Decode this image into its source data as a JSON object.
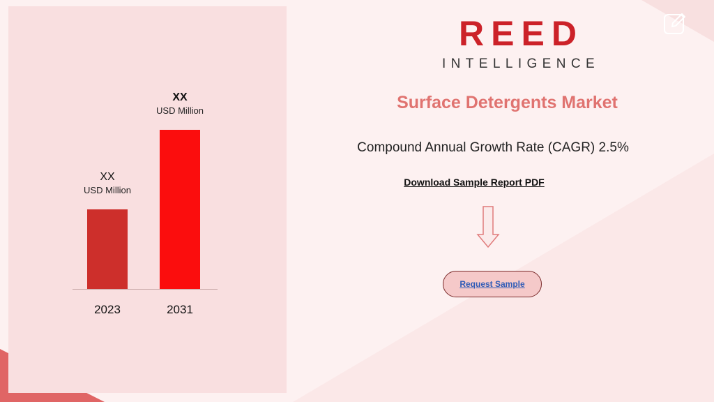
{
  "logo": {
    "top": "REED",
    "bottom": "INTELLIGENCE"
  },
  "title": "Surface Detergents Market",
  "cagr_text": "Compound Annual Growth Rate (CAGR) 2.5%",
  "download_link": "Download Sample Report PDF",
  "request_button": "Request Sample",
  "icons": {
    "arrow": "down-arrow-icon",
    "edit": "edit-icon"
  },
  "colors": {
    "bar_2023": "#cd2f2b",
    "bar_2031": "#fb0d0d",
    "title": "#e07370",
    "logo": "#cc2229"
  },
  "chart_data": {
    "type": "bar",
    "categories": [
      "2023",
      "2031"
    ],
    "values": [
      1.0,
      2.0
    ],
    "value_labels": [
      {
        "value": "XX",
        "unit": "USD Million"
      },
      {
        "value": "XX",
        "unit": "USD Million"
      }
    ],
    "title": "",
    "xlabel": "",
    "ylabel": "",
    "ylim": [
      0,
      2.0
    ],
    "grid": false,
    "legend": "none"
  }
}
